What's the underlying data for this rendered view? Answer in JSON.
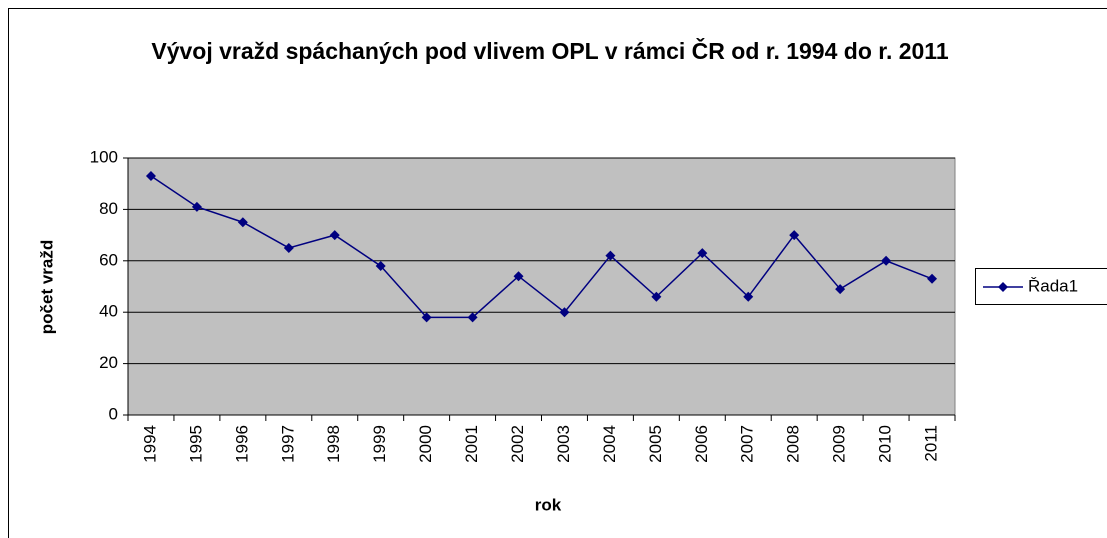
{
  "chart_data": {
    "type": "line",
    "title": "Vývoj vražd spáchaných pod vlivem OPL v rámci ČR od r. 1994 do r. 2011",
    "x_label": "rok",
    "y_label": "počet vražd",
    "categories": [
      "1994",
      "1995",
      "1996",
      "1997",
      "1998",
      "1999",
      "2000",
      "2001",
      "2002",
      "2003",
      "2004",
      "2005",
      "2006",
      "2007",
      "2008",
      "2009",
      "2010",
      "2011"
    ],
    "series": [
      {
        "name": "Řada1",
        "color": "#000080",
        "values": [
          93,
          81,
          75,
          65,
          70,
          58,
          38,
          38,
          54,
          40,
          62,
          46,
          63,
          46,
          70,
          49,
          60,
          53
        ]
      }
    ],
    "ylim": [
      0,
      100
    ],
    "yticks": [
      0,
      20,
      40,
      60,
      80,
      100
    ],
    "grid": true,
    "legend": "right"
  }
}
